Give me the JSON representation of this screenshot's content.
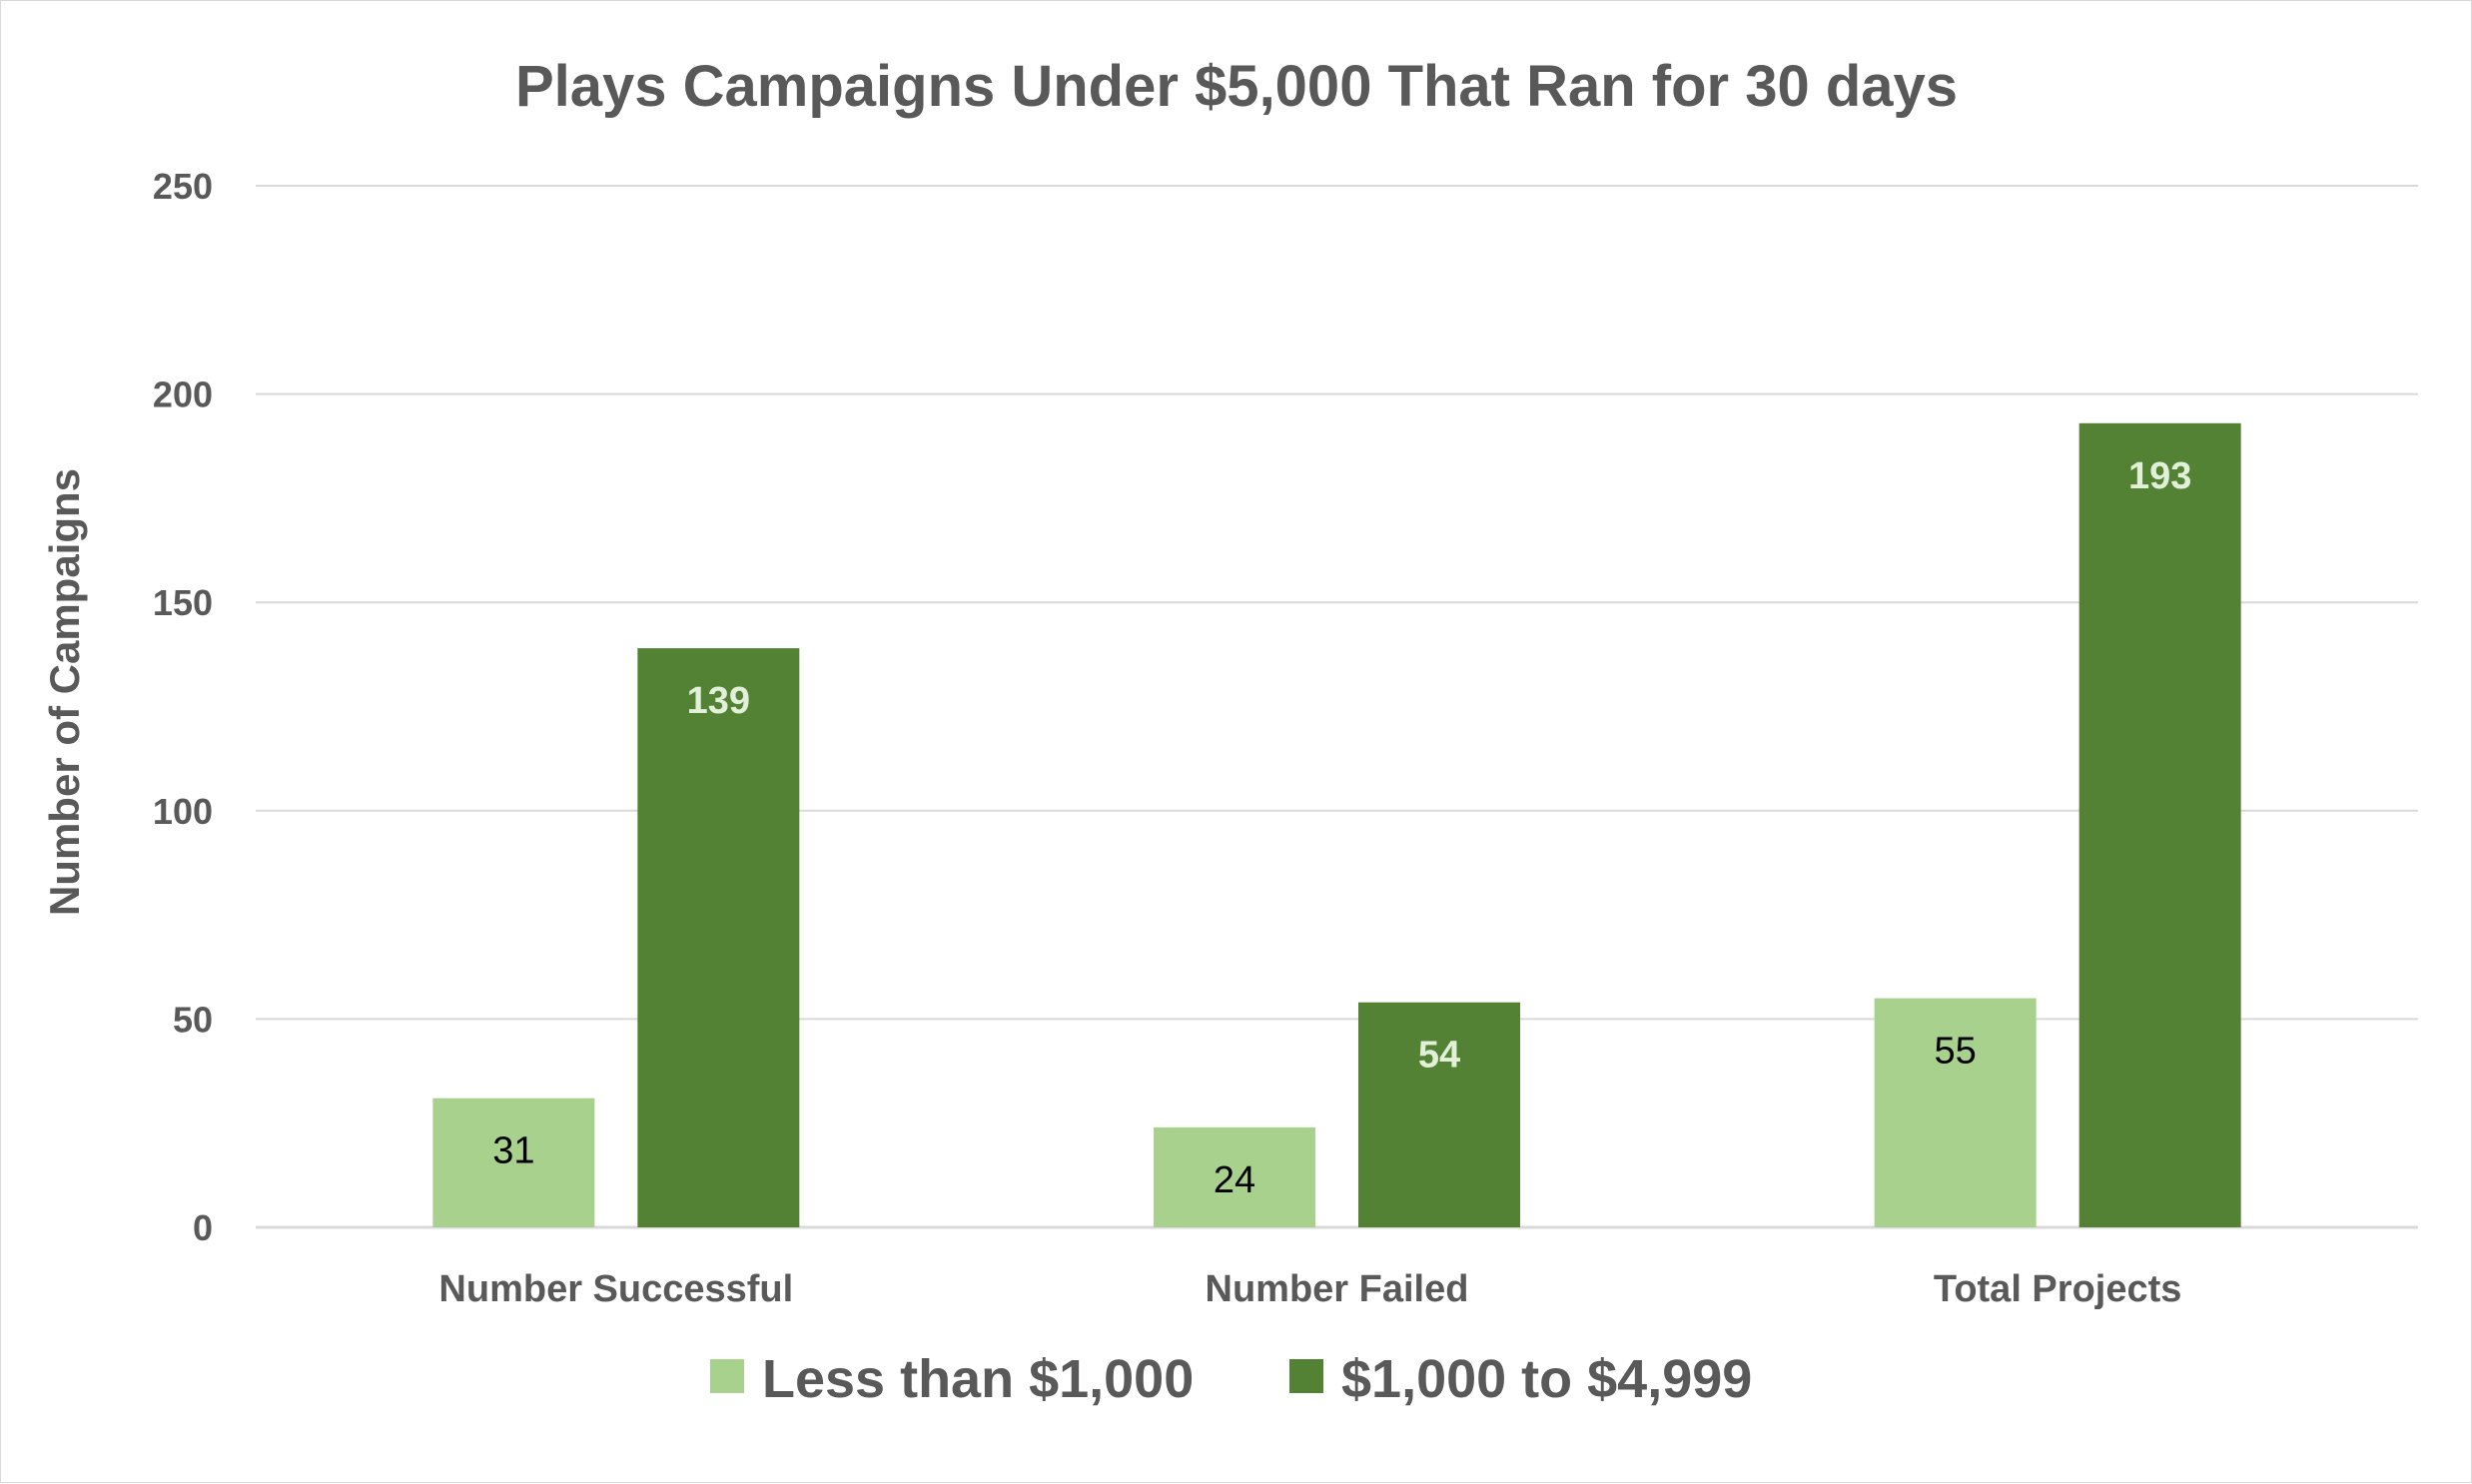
{
  "chart_data": {
    "type": "bar",
    "title": "Plays Campaigns Under $5,000 That Ran for 30 days",
    "xlabel": "",
    "ylabel": "Number of Campaigns",
    "categories": [
      "Number Successful",
      "Number Failed",
      "Total Projects"
    ],
    "series": [
      {
        "name": "Less than $1,000",
        "values": [
          31,
          24,
          55
        ],
        "color": "#a9d18e",
        "label_color": "#000000"
      },
      {
        "name": "$1,000 to $4,999",
        "values": [
          139,
          54,
          193
        ],
        "color": "#548235",
        "label_color": "#e2f0d9"
      }
    ],
    "ylim": [
      0,
      250
    ],
    "yticks": [
      0,
      50,
      100,
      150,
      200,
      250
    ],
    "grid": true,
    "legend_position": "bottom"
  }
}
